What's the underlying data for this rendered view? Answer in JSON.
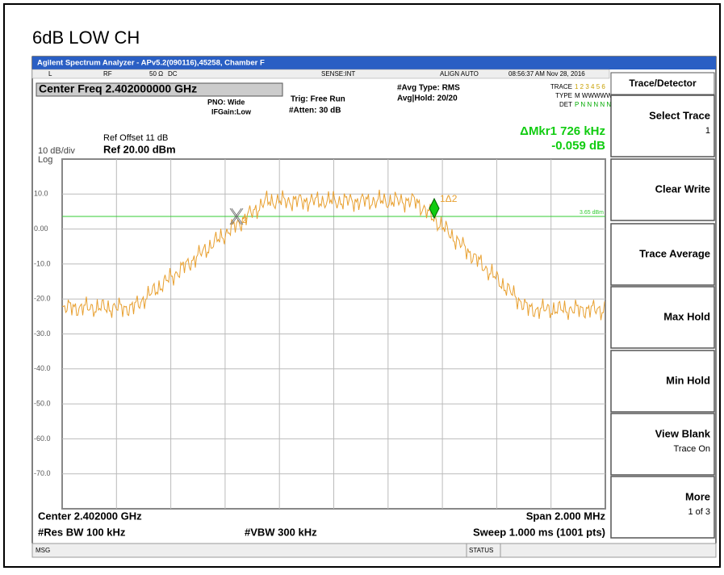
{
  "header": {
    "title": "6dB LOW CH"
  },
  "window": {
    "title": "Agilent Spectrum Analyzer - APv5.2(090116),45258, Chamber F"
  },
  "status": {
    "mode": "L",
    "rf": "RF",
    "impedance": "50 Ω",
    "coupling": "DC",
    "sense": "SENSE:INT",
    "align": "ALIGN AUTO",
    "datetime": "08:56:37 AM Nov 28, 2016"
  },
  "settings": {
    "center_freq": "Center Freq 2.402000000 GHz",
    "pno": "PNO: Wide",
    "ifgain": "IFGain:Low",
    "trig": "Trig: Free Run",
    "atten": "#Atten: 30 dB",
    "avg_type": "#Avg Type: RMS",
    "avg_hold": "Avg|Hold: 20/20",
    "trace_label": "TRACE",
    "trace_nums": "1 2 3 4 5 6",
    "type_label": "TYPE",
    "type_vals": "M WWWWW",
    "det_label": "DET",
    "det_vals": "P N N N N N"
  },
  "marker": {
    "delta_freq": "ΔMkr1 726 kHz",
    "delta_amp": "-0.059 dB",
    "m1": "1Δ2",
    "m2": "2",
    "line_label": "3.65 dBm"
  },
  "ref": {
    "offset": "Ref Offset 11 dB",
    "level": "Ref 20.00 dBm",
    "scale": "10 dB/div",
    "log": "Log"
  },
  "y_labels": [
    "10.0",
    "0.00",
    "-10.0",
    "-20.0",
    "-30.0",
    "-40.0",
    "-50.0",
    "-60.0",
    "-70.0"
  ],
  "footer": {
    "center": "Center 2.402000 GHz",
    "span": "Span 2.000 MHz",
    "rbw": "#Res BW 100 kHz",
    "vbw": "#VBW 300 kHz",
    "sweep": "Sweep  1.000 ms (1001 pts)",
    "msg": "MSG",
    "status": "STATUS"
  },
  "softkeys": {
    "header": "Trace/Detector",
    "keys": [
      {
        "label": "Select Trace",
        "sub": "1"
      },
      {
        "label": "Clear Write"
      },
      {
        "label": "Trace Average"
      },
      {
        "label": "Max Hold"
      },
      {
        "label": "Min Hold"
      },
      {
        "label": "View Blank",
        "sub": "Trace On"
      },
      {
        "label": "More",
        "sub": "1 of 3"
      }
    ]
  }
}
